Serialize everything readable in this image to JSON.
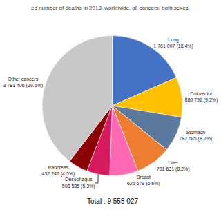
{
  "chart_data": {
    "type": "pie",
    "title": "ed number of deaths in 2018, worldwide, all cancers, both sexes,",
    "categories": [
      "Lung",
      "Colorectur",
      "Stomach",
      "Liver",
      "Breast",
      "Oesophagus",
      "Pancreas",
      "Other cancers"
    ],
    "values": [
      1761007,
      880792,
      782685,
      781631,
      626679,
      508585,
      432242,
      3781406
    ],
    "value_labels": [
      "1 761 007 (18.4%)",
      "880 792 (9.2%)",
      "782 685 (8.2%)",
      "781 631 (8.2%)",
      "626 679 (6.6%)",
      "508 585 (5.3%)",
      "432 242 (4.5%)",
      "3 781 406 (39.6%)"
    ],
    "colors": [
      "#4472C4",
      "#FFC000",
      "#5B7A9D",
      "#ED7D31",
      "#FF69B4",
      "#D81B60",
      "#8B0000",
      "#C8C8C8"
    ],
    "annotations": [
      "Total : 9 555 027"
    ],
    "data_labels": true
  }
}
